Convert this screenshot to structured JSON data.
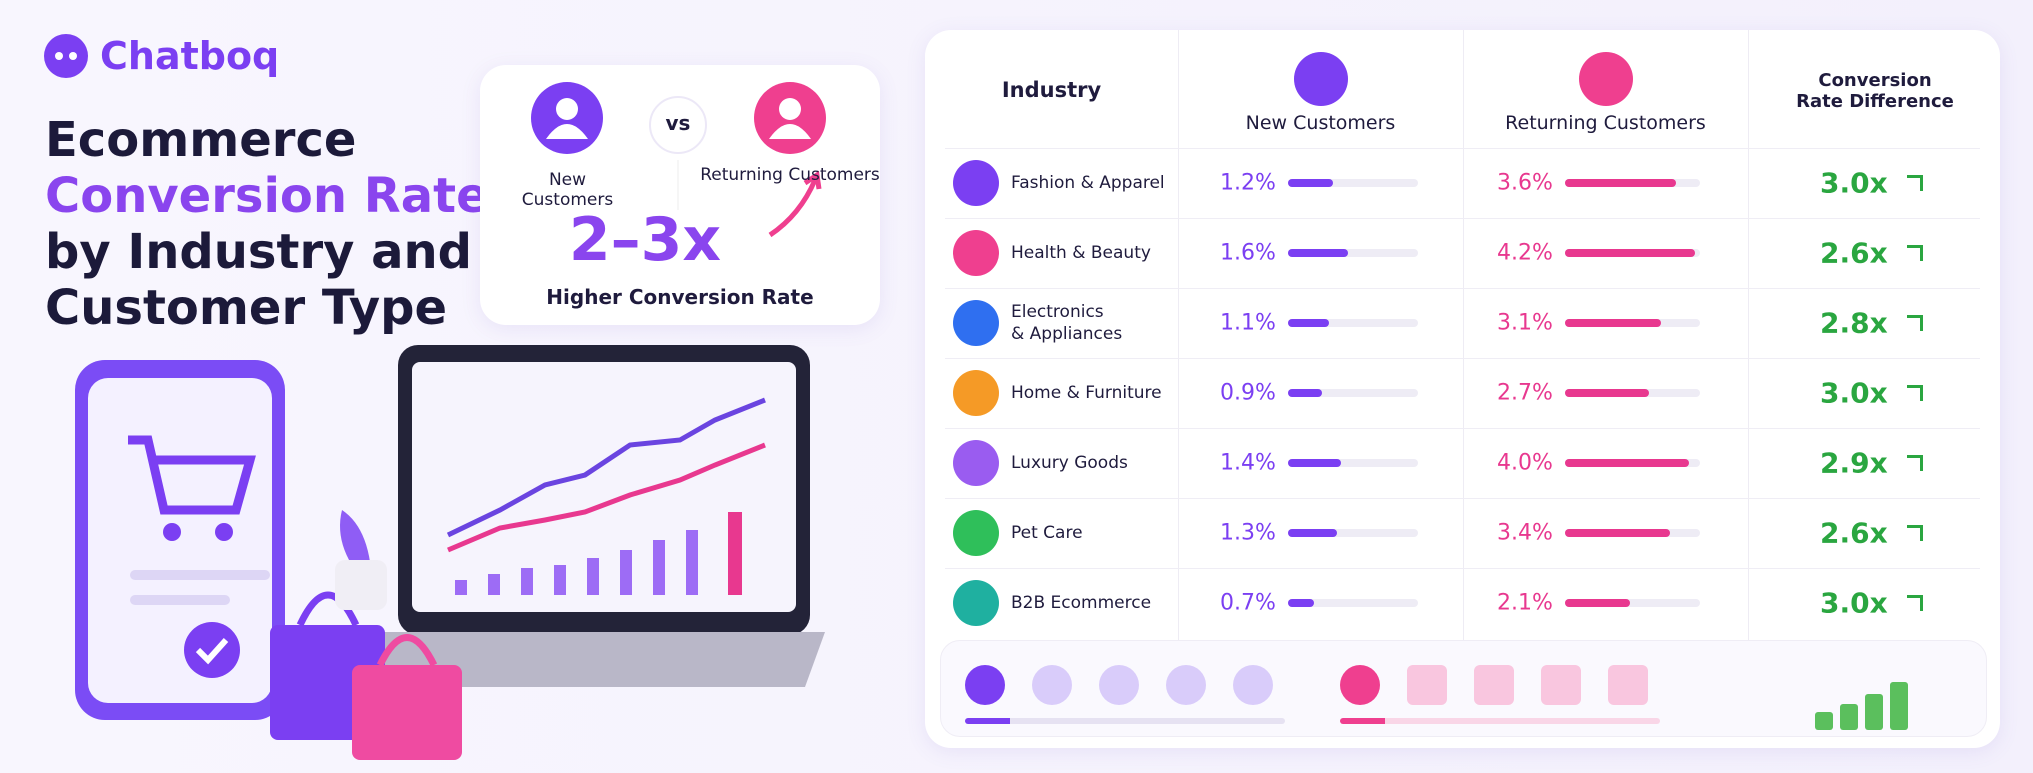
{
  "header": {
    "brand": "Chatboq",
    "title_lines": [
      "Ecommerce",
      "Conversion Rate",
      "by Industry and",
      "Customer Type"
    ]
  },
  "callout": {
    "left_label": "New Customers",
    "vs": "vs",
    "right_label": "Returning Customers",
    "headline": "2–3x",
    "subtext": "Higher Conversion Rate"
  },
  "table": {
    "columns": [
      "Industry",
      "New Customers",
      "Returning Customers",
      "Conversion Rate Difference"
    ],
    "rows": [
      {
        "industry": "Fashion & Apparel",
        "new": 1.2,
        "new_label": "1.2%",
        "returning": 3.6,
        "returning_label": "3.6%",
        "difference": 3.0,
        "difference_label": "3.0x"
      },
      {
        "industry": "Health & Beauty",
        "new": 1.6,
        "new_label": "1.6%",
        "returning": 4.2,
        "returning_label": "4.2%",
        "difference": 2.6,
        "difference_label": "2.6x"
      },
      {
        "industry": "Electronics\n& Appliances",
        "new": 1.1,
        "new_label": "1.1%",
        "returning": 3.1,
        "returning_label": "3.1%",
        "difference": 2.8,
        "difference_label": "2.8x"
      },
      {
        "industry": "Home & Furniture",
        "new": 0.9,
        "new_label": "0.9%",
        "returning": 2.7,
        "returning_label": "2.7%",
        "difference": 3.0,
        "difference_label": "3.0x"
      },
      {
        "industry": "Luxury Goods",
        "new": 1.4,
        "new_label": "1.4%",
        "returning": 4.0,
        "returning_label": "4.0%",
        "difference": 2.9,
        "difference_label": "2.9x"
      },
      {
        "industry": "Pet Care",
        "new": 1.3,
        "new_label": "1.3%",
        "returning": 3.4,
        "returning_label": "3.4%",
        "difference": 2.6,
        "difference_label": "2.6x"
      },
      {
        "industry": "B2B Ecommerce",
        "new": 0.7,
        "new_label": "0.7%",
        "returning": 2.1,
        "returning_label": "2.1%",
        "difference": 3.0,
        "difference_label": "3.0x"
      }
    ]
  }
}
